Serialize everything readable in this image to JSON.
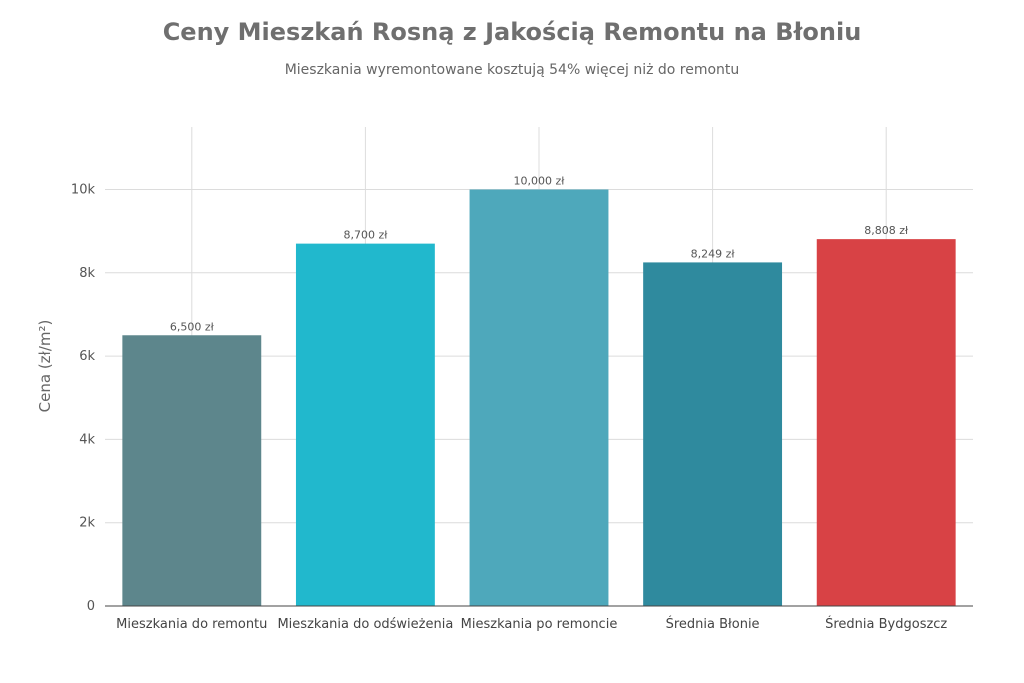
{
  "title": "Ceny Mieszkań Rosną z Jakością Remontu na Błoniu",
  "subtitle": "Mieszkania wyremontowane kosztują 54% więcej niż do remontu",
  "chart_data": {
    "type": "bar",
    "categories": [
      "Mieszkania do remontu",
      "Mieszkania do odświeżenia",
      "Mieszkania po remoncie",
      "Średnia Błonie",
      "Średnia Bydgoszcz"
    ],
    "values": [
      6500,
      8700,
      10000,
      8249,
      8808
    ],
    "data_labels": [
      "6,500 zł",
      "8,700 zł",
      "10,000 zł",
      "8,249 zł",
      "8,808 zł"
    ],
    "colors": [
      "#5d868c",
      "#21b8cd",
      "#4ea8bb",
      "#2f8a9e",
      "#d84245"
    ],
    "ylabel": "Cena (zł/m²)",
    "yticks": [
      0,
      2000,
      4000,
      6000,
      8000,
      10000
    ],
    "ytick_labels": [
      "0",
      "2k",
      "4k",
      "6k",
      "8k",
      "10k"
    ],
    "ylim": [
      0,
      11500
    ],
    "grid": true
  }
}
